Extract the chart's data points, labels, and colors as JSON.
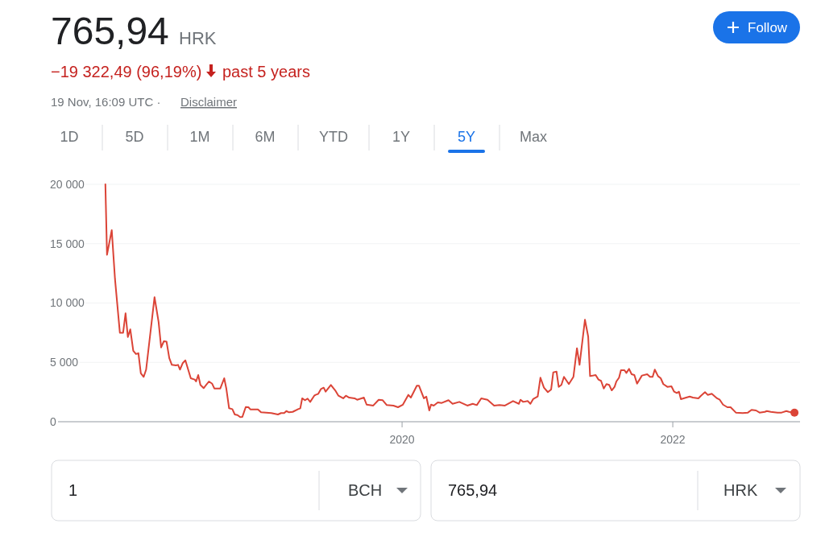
{
  "chart_data": {
    "type": "line",
    "title": "765,94",
    "annotations": [
      "HRK",
      "−19 322,49 (96,19%)",
      "past 5 years",
      "19 Nov, 16:09 UTC ·",
      "Disclaimer",
      "Follow",
      "1D",
      "5D",
      "1M",
      "6M",
      "YTD",
      "1Y",
      "5Y",
      "Max",
      "1",
      "BCH",
      "765,94",
      "HRK"
    ],
    "xlim": [
      2017.458,
      2022.94
    ],
    "xticks": [
      2020,
      2022
    ],
    "ylim": [
      0,
      20000
    ],
    "yticks": [
      0,
      {
        "value": 5000,
        "label": "5 000"
      },
      {
        "value": 10000,
        "label": "10 000"
      },
      {
        "value": 15000,
        "label": "15 000"
      },
      {
        "value": 20000,
        "label": "20 000"
      }
    ],
    "grid": "y",
    "series": [
      {
        "color": "#db4437",
        "x": [
          2017.808,
          2017.82,
          2017.855,
          2017.879,
          2017.915,
          2017.939,
          2017.957,
          2017.974,
          2017.992,
          2018.014,
          2018.034,
          2018.052,
          2018.07,
          2018.091,
          2018.109,
          2018.171,
          2018.201,
          2018.22,
          2018.24,
          2018.26,
          2018.28,
          2018.299,
          2018.329,
          2018.345,
          2018.359,
          2018.379,
          2018.399,
          2018.439,
          2018.468,
          2018.478,
          2018.494,
          2018.51,
          2018.534,
          2018.573,
          2018.597,
          2018.613,
          2018.657,
          2018.686,
          2018.702,
          2018.722,
          2018.746,
          2018.764,
          2018.784,
          2018.804,
          2018.82,
          2018.845,
          2018.865,
          2018.879,
          2018.935,
          2018.958,
          2019.034,
          2019.083,
          2019.106,
          2019.129,
          2019.145,
          2019.165,
          2019.192,
          2019.232,
          2019.248,
          2019.262,
          2019.282,
          2019.302,
          2019.321,
          2019.351,
          2019.361,
          2019.381,
          2019.401,
          2019.421,
          2019.435,
          2019.474,
          2019.506,
          2019.53,
          2019.565,
          2019.585,
          2019.609,
          2019.649,
          2019.668,
          2019.718,
          2019.738,
          2019.787,
          2019.827,
          2019.857,
          2019.887,
          2019.936,
          2019.97,
          2020.006,
          2020.046,
          2020.065,
          2020.109,
          2020.125,
          2020.161,
          2020.179,
          2020.201,
          2020.214,
          2020.234,
          2020.264,
          2020.293,
          2020.343,
          2020.373,
          2020.423,
          2020.482,
          2020.522,
          2020.552,
          2020.585,
          2020.631,
          2020.68,
          2020.72,
          2020.76,
          2020.82,
          2020.863,
          2020.875,
          2020.895,
          2020.929,
          2020.948,
          2020.968,
          2021.002,
          2021.022,
          2021.048,
          2021.077,
          2021.101,
          2021.117,
          2021.141,
          2021.157,
          2021.177,
          2021.196,
          2021.232,
          2021.266,
          2021.292,
          2021.311,
          2021.351,
          2021.375,
          2021.389,
          2021.43,
          2021.451,
          2021.47,
          2021.49,
          2021.51,
          2021.53,
          2021.549,
          2021.57,
          2021.583,
          2021.603,
          2021.617,
          2021.643,
          2021.657,
          2021.677,
          2021.696,
          2021.716,
          2021.736,
          2021.772,
          2021.811,
          2021.832,
          2021.851,
          2021.867,
          2021.891,
          2021.911,
          2021.93,
          2021.96,
          2021.99,
          2022.01,
          2022.03,
          2022.046,
          2022.06,
          2022.099,
          2022.125,
          2022.149,
          2022.189,
          2022.208,
          2022.238,
          2022.258,
          2022.288,
          2022.327,
          2022.347,
          2022.371,
          2022.403,
          2022.427,
          2022.466,
          2022.516,
          2022.555,
          2022.582,
          2022.615,
          2022.641,
          2022.68,
          2022.695,
          2022.724,
          2022.774,
          2022.804,
          2022.839,
          2022.859,
          2022.899
        ],
        "values": [
          20000,
          14060,
          16140,
          12020,
          7500,
          7500,
          9130,
          7140,
          7780,
          5970,
          5700,
          5770,
          4070,
          3780,
          4390,
          10490,
          8410,
          6260,
          6780,
          6740,
          5360,
          4790,
          4740,
          4790,
          4390,
          4930,
          5170,
          3660,
          3550,
          3390,
          3930,
          3100,
          2830,
          3390,
          3200,
          2800,
          2800,
          3660,
          2760,
          1130,
          1060,
          610,
          560,
          390,
          410,
          1240,
          1220,
          1040,
          1040,
          790,
          730,
          610,
          730,
          730,
          900,
          790,
          830,
          1060,
          1130,
          1970,
          1810,
          1950,
          1670,
          2190,
          2260,
          2350,
          2760,
          2870,
          2530,
          3100,
          2640,
          2190,
          1970,
          2190,
          2030,
          1970,
          1850,
          2030,
          1440,
          1360,
          1850,
          1810,
          1400,
          1360,
          1220,
          1440,
          2260,
          2030,
          3030,
          3030,
          1970,
          2120,
          950,
          1440,
          1360,
          1630,
          1580,
          1810,
          1510,
          1670,
          1360,
          1510,
          1400,
          1970,
          1850,
          1360,
          1400,
          1360,
          1740,
          1510,
          1850,
          1670,
          1740,
          1510,
          1900,
          2120,
          3710,
          2870,
          2490,
          2710,
          4160,
          4220,
          2940,
          3100,
          3780,
          3170,
          3780,
          6190,
          4790,
          8590,
          7170,
          3840,
          3930,
          3550,
          3440,
          2800,
          3170,
          3100,
          2640,
          2940,
          3390,
          3710,
          4340,
          4340,
          4110,
          4450,
          4000,
          3930,
          3210,
          3890,
          4000,
          3780,
          3780,
          4390,
          3840,
          3660,
          3170,
          2940,
          2980,
          2530,
          2420,
          2530,
          1900,
          2030,
          2120,
          2030,
          1970,
          2190,
          2490,
          2260,
          2350,
          1970,
          1850,
          1440,
          1220,
          1220,
          770,
          730,
          770,
          1000,
          950,
          770,
          830,
          900,
          830,
          770,
          770,
          900,
          830,
          766
        ]
      }
    ]
  }
}
